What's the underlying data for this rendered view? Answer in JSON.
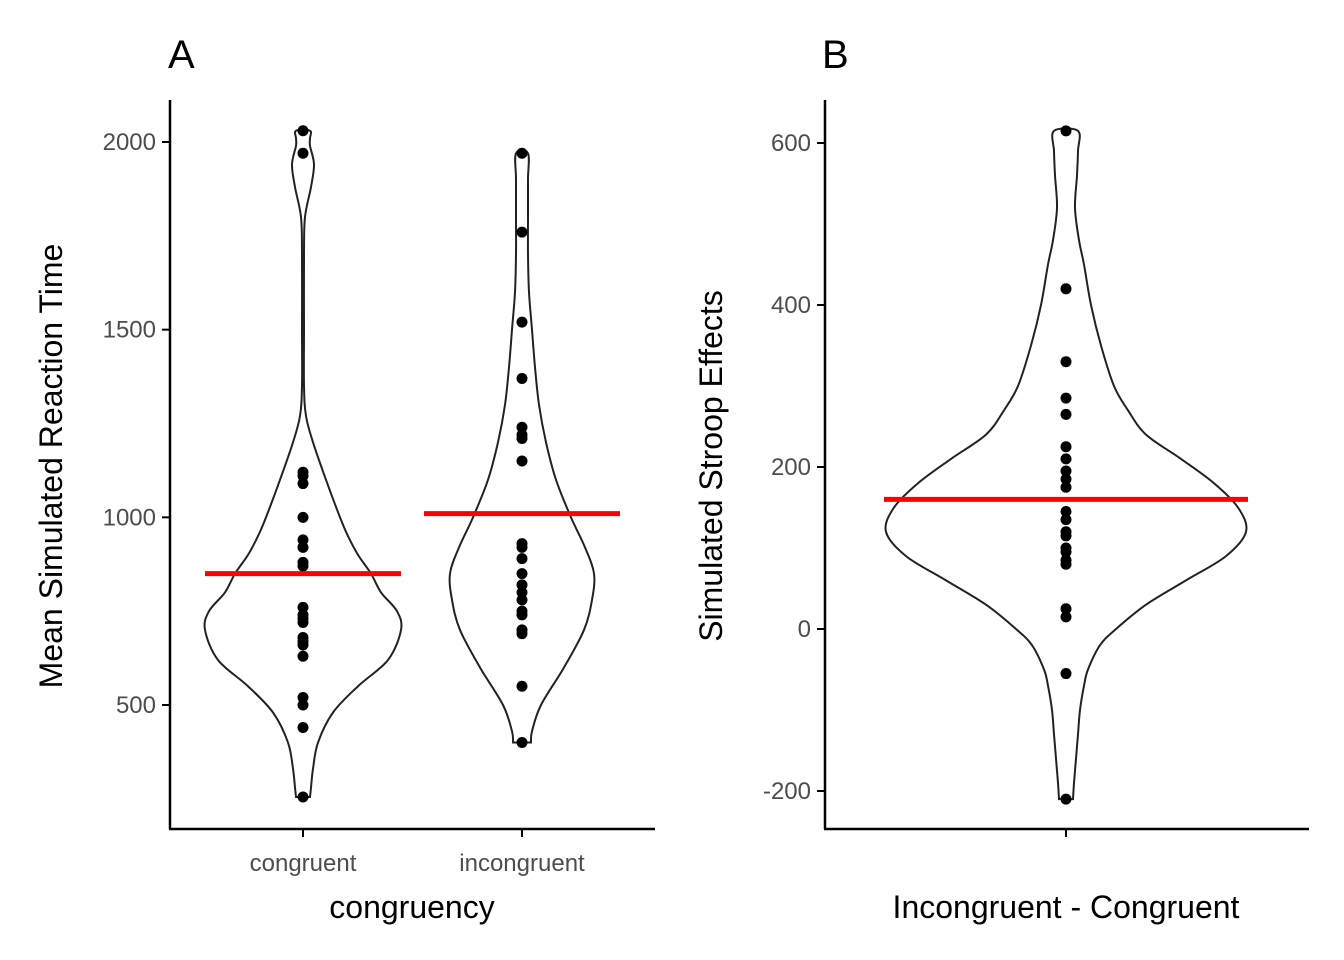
{
  "chart_data": [
    {
      "panel_label": "A",
      "type": "violin",
      "xlabel": "congruency",
      "ylabel": "Mean Simulated Reaction Time",
      "categories": [
        "congruent",
        "incongruent"
      ],
      "yticks": [
        500,
        1000,
        1500,
        2000
      ],
      "ylim": [
        220,
        2110
      ],
      "grid": false,
      "series": [
        {
          "category": "congruent",
          "points": [
            2030,
            1970,
            1120,
            1110,
            1090,
            1000,
            940,
            920,
            880,
            870,
            760,
            740,
            730,
            720,
            680,
            670,
            660,
            630,
            520,
            500,
            440,
            255
          ],
          "mean": 850,
          "violin_profile": [
            [
              255,
              7
            ],
            [
              280,
              8
            ],
            [
              330,
              10
            ],
            [
              400,
              15
            ],
            [
              480,
              30
            ],
            [
              550,
              55
            ],
            [
              620,
              85
            ],
            [
              700,
              98
            ],
            [
              750,
              94
            ],
            [
              800,
              78
            ],
            [
              850,
              68
            ],
            [
              900,
              55
            ],
            [
              950,
              45
            ],
            [
              1000,
              37
            ],
            [
              1100,
              23
            ],
            [
              1200,
              10
            ],
            [
              1270,
              3
            ],
            [
              1350,
              1
            ],
            [
              1500,
              1
            ],
            [
              1700,
              1
            ],
            [
              1800,
              2
            ],
            [
              1880,
              8
            ],
            [
              1940,
              11
            ],
            [
              1990,
              7
            ],
            [
              2010,
              7
            ],
            [
              2030,
              7
            ]
          ]
        },
        {
          "category": "incongruent",
          "points": [
            1970,
            1760,
            1520,
            1370,
            1240,
            1220,
            1210,
            1150,
            930,
            920,
            890,
            850,
            820,
            800,
            780,
            750,
            740,
            700,
            690,
            550,
            400
          ],
          "mean": 1010,
          "violin_profile": [
            [
              400,
              9
            ],
            [
              430,
              10
            ],
            [
              500,
              19
            ],
            [
              600,
              42
            ],
            [
              700,
              62
            ],
            [
              780,
              70
            ],
            [
              850,
              72
            ],
            [
              920,
              63
            ],
            [
              1000,
              49
            ],
            [
              1100,
              34
            ],
            [
              1200,
              24
            ],
            [
              1300,
              17
            ],
            [
              1400,
              13
            ],
            [
              1500,
              10
            ],
            [
              1600,
              7
            ],
            [
              1700,
              6
            ],
            [
              1800,
              6
            ],
            [
              1900,
              6
            ],
            [
              1970,
              6
            ]
          ]
        }
      ],
      "colors": {
        "mean_line": "#ff0000",
        "points": "#000000",
        "violin_outline": "#222222"
      }
    },
    {
      "panel_label": "B",
      "type": "violin",
      "xlabel": "Incongruent - Congruent",
      "ylabel": "Simulated Stroop Effects",
      "categories": [
        ""
      ],
      "yticks": [
        -200,
        0,
        200,
        400,
        600
      ],
      "ylim": [
        -225,
        655
      ],
      "grid": false,
      "series": [
        {
          "category": "",
          "points": [
            615,
            420,
            330,
            285,
            265,
            225,
            210,
            195,
            185,
            175,
            145,
            135,
            120,
            115,
            100,
            95,
            85,
            80,
            25,
            15,
            -55,
            -210
          ],
          "mean": 160,
          "violin_profile": [
            [
              -210,
              7
            ],
            [
              -190,
              8
            ],
            [
              -160,
              10
            ],
            [
              -130,
              12
            ],
            [
              -100,
              14
            ],
            [
              -70,
              18
            ],
            [
              -50,
              22
            ],
            [
              -20,
              34
            ],
            [
              0,
              50
            ],
            [
              30,
              80
            ],
            [
              60,
              120
            ],
            [
              90,
              160
            ],
            [
              120,
              180
            ],
            [
              150,
              172
            ],
            [
              180,
              148
            ],
            [
              210,
              115
            ],
            [
              240,
              80
            ],
            [
              270,
              62
            ],
            [
              300,
              48
            ],
            [
              350,
              35
            ],
            [
              400,
              25
            ],
            [
              450,
              18
            ],
            [
              480,
              13
            ],
            [
              520,
              9
            ],
            [
              560,
              11
            ],
            [
              590,
              12
            ],
            [
              615,
              12
            ]
          ]
        }
      ],
      "colors": {
        "mean_line": "#ff0000",
        "points": "#000000",
        "violin_outline": "#222222"
      }
    }
  ]
}
